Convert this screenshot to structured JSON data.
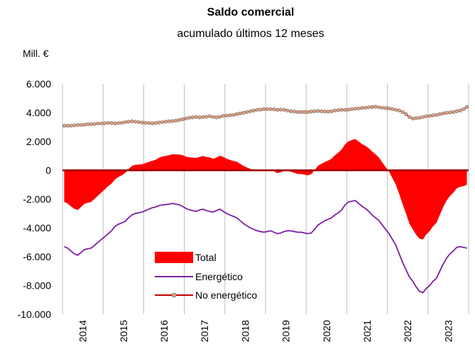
{
  "chart_data": {
    "type": "combo",
    "title": "Saldo comercial",
    "subtitle": "acumulado últimos 12 meses",
    "ylabel": "Mill. €",
    "ylim": [
      -10000,
      6000
    ],
    "yticks": [
      {
        "value": 6000,
        "label": "6.000"
      },
      {
        "value": 4000,
        "label": "4.000"
      },
      {
        "value": 2000,
        "label": "2.000"
      },
      0,
      {
        "value": -2000,
        "label": "-2.000"
      },
      {
        "value": -4000,
        "label": "-4.000"
      },
      {
        "value": -6000,
        "label": "-6.000"
      },
      {
        "value": -8000,
        "label": "-8.000"
      },
      {
        "value": -10000,
        "label": "-10.000"
      }
    ],
    "grid": true,
    "categories": [
      null,
      null,
      null,
      null,
      null,
      null,
      "2014",
      null,
      null,
      null,
      null,
      null,
      null,
      null,
      null,
      null,
      null,
      null,
      "2015",
      null,
      null,
      null,
      null,
      null,
      null,
      null,
      null,
      null,
      null,
      null,
      "2016",
      null,
      null,
      null,
      null,
      null,
      null,
      null,
      null,
      null,
      null,
      null,
      "2017",
      null,
      null,
      null,
      null,
      null,
      null,
      null,
      null,
      null,
      null,
      null,
      "2018",
      null,
      null,
      null,
      null,
      null,
      null,
      null,
      null,
      null,
      null,
      null,
      "2019",
      null,
      null,
      null,
      null,
      null,
      null,
      null,
      null,
      null,
      null,
      null,
      "2020",
      null,
      null,
      null,
      null,
      null,
      null,
      null,
      null,
      null,
      null,
      null,
      "2021",
      null,
      null,
      null,
      null,
      null,
      null,
      null,
      null,
      null,
      null,
      null,
      "2022",
      null,
      null,
      null,
      null,
      null,
      null,
      null,
      null,
      null,
      null,
      null,
      "2023",
      null,
      null,
      null,
      null,
      null
    ],
    "series": [
      {
        "name": "Total",
        "kind": "area",
        "color": "#ff0000",
        "values": [
          -2200,
          -2300,
          -2500,
          -2680,
          -2750,
          -2550,
          -2330,
          -2250,
          -2200,
          -1980,
          -1750,
          -1550,
          -1330,
          -1100,
          -920,
          -640,
          -470,
          -350,
          -200,
          80,
          300,
          380,
          400,
          420,
          500,
          580,
          660,
          730,
          870,
          950,
          1000,
          1050,
          1120,
          1100,
          1100,
          1050,
          950,
          900,
          880,
          850,
          930,
          1000,
          920,
          900,
          800,
          880,
          1020,
          930,
          800,
          720,
          650,
          600,
          450,
          300,
          200,
          100,
          50,
          0,
          -30,
          -50,
          0,
          50,
          -70,
          -200,
          -130,
          -50,
          -50,
          -100,
          -170,
          -250,
          -250,
          -300,
          -350,
          -270,
          0,
          320,
          450,
          580,
          680,
          800,
          1050,
          1230,
          1450,
          1800,
          2020,
          2100,
          2180,
          2000,
          1830,
          1700,
          1530,
          1300,
          1120,
          880,
          550,
          220,
          -100,
          -550,
          -1000,
          -1650,
          -2350,
          -3000,
          -3700,
          -4100,
          -4480,
          -4750,
          -4800,
          -4450,
          -4220,
          -3880,
          -3650,
          -3100,
          -2550,
          -2100,
          -1780,
          -1550,
          -1250,
          -1150,
          -1100,
          -1000
        ]
      },
      {
        "name": "Energético",
        "kind": "line",
        "color": "#7b1fa2",
        "values": [
          -5300,
          -5400,
          -5600,
          -5800,
          -5900,
          -5700,
          -5500,
          -5450,
          -5400,
          -5200,
          -5000,
          -4800,
          -4600,
          -4400,
          -4200,
          -3900,
          -3750,
          -3650,
          -3550,
          -3300,
          -3100,
          -3000,
          -2950,
          -2900,
          -2800,
          -2700,
          -2600,
          -2550,
          -2450,
          -2400,
          -2380,
          -2350,
          -2300,
          -2350,
          -2400,
          -2500,
          -2650,
          -2750,
          -2800,
          -2850,
          -2750,
          -2700,
          -2800,
          -2850,
          -2900,
          -2800,
          -2700,
          -2850,
          -3000,
          -3100,
          -3200,
          -3300,
          -3500,
          -3700,
          -3850,
          -4000,
          -4100,
          -4200,
          -4250,
          -4300,
          -4250,
          -4200,
          -4300,
          -4400,
          -4350,
          -4250,
          -4200,
          -4200,
          -4250,
          -4300,
          -4300,
          -4350,
          -4400,
          -4350,
          -4100,
          -3800,
          -3650,
          -3500,
          -3400,
          -3300,
          -3100,
          -2950,
          -2750,
          -2400,
          -2200,
          -2150,
          -2100,
          -2300,
          -2500,
          -2650,
          -2850,
          -3100,
          -3300,
          -3500,
          -3800,
          -4100,
          -4400,
          -4800,
          -5200,
          -5800,
          -6400,
          -6900,
          -7400,
          -7700,
          -8100,
          -8400,
          -8500,
          -8200,
          -8000,
          -7700,
          -7500,
          -7000,
          -6500,
          -6100,
          -5800,
          -5600,
          -5350,
          -5300,
          -5350,
          -5400
        ]
      },
      {
        "name": "No energético",
        "kind": "dots",
        "color": "#c00000",
        "marker_color": "#e0a080",
        "values": [
          3100,
          3100,
          3100,
          3120,
          3150,
          3150,
          3170,
          3200,
          3200,
          3220,
          3250,
          3250,
          3270,
          3300,
          3280,
          3260,
          3280,
          3300,
          3350,
          3380,
          3400,
          3380,
          3350,
          3320,
          3300,
          3280,
          3260,
          3280,
          3320,
          3350,
          3380,
          3400,
          3420,
          3450,
          3500,
          3550,
          3600,
          3650,
          3680,
          3700,
          3680,
          3700,
          3720,
          3750,
          3700,
          3680,
          3720,
          3780,
          3800,
          3820,
          3850,
          3900,
          3950,
          4000,
          4050,
          4100,
          4150,
          4200,
          4220,
          4250,
          4250,
          4250,
          4230,
          4200,
          4220,
          4200,
          4150,
          4100,
          4080,
          4050,
          4050,
          4050,
          4050,
          4080,
          4100,
          4120,
          4100,
          4080,
          4080,
          4100,
          4150,
          4180,
          4200,
          4200,
          4220,
          4250,
          4280,
          4300,
          4330,
          4350,
          4380,
          4400,
          4420,
          4380,
          4350,
          4320,
          4300,
          4250,
          4200,
          4150,
          4050,
          3900,
          3700,
          3600,
          3620,
          3650,
          3700,
          3750,
          3780,
          3820,
          3850,
          3900,
          3950,
          4000,
          4020,
          4050,
          4100,
          4150,
          4250,
          4400
        ]
      }
    ]
  }
}
